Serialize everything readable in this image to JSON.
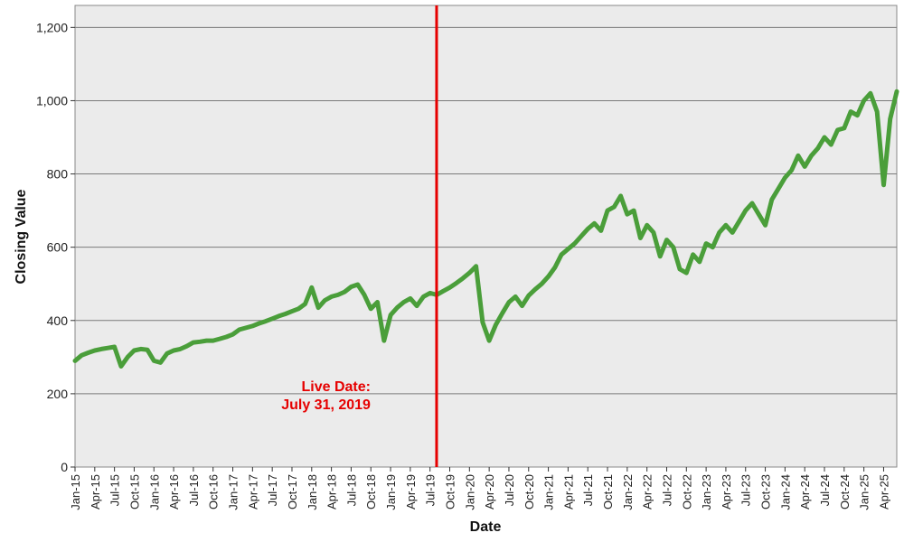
{
  "chart_data": {
    "type": "line",
    "title": "",
    "xlabel": "Date",
    "ylabel": "Closing Value",
    "ylim": [
      0,
      1260
    ],
    "yticks": [
      0,
      200,
      400,
      600,
      800,
      1000,
      1200
    ],
    "ytick_labels": [
      "0",
      "200",
      "400",
      "600",
      "800",
      "1,000",
      "1,200"
    ],
    "xlim": [
      "2015-01",
      "2025-06"
    ],
    "xtick_labels": [
      "Jan-15",
      "Apr-15",
      "Jul-15",
      "Oct-15",
      "Jan-16",
      "Apr-16",
      "Jul-16",
      "Oct-16",
      "Jan-17",
      "Apr-17",
      "Jul-17",
      "Oct-17",
      "Jan-18",
      "Apr-18",
      "Jul-18",
      "Oct-18",
      "Jan-19",
      "Apr-19",
      "Jul-19",
      "Oct-19",
      "Jan-20",
      "Apr-20",
      "Jul-20",
      "Oct-20",
      "Jan-21",
      "Apr-21",
      "Jul-21",
      "Oct-21",
      "Jan-22",
      "Apr-22",
      "Jul-22",
      "Oct-22",
      "Jan-23",
      "Apr-23",
      "Jul-23",
      "Oct-23",
      "Jan-24",
      "Apr-24",
      "Jul-24",
      "Oct-24",
      "Jan-25",
      "Apr-25"
    ],
    "grid": true,
    "legend": "none",
    "series_color": "#4a9e3a",
    "marker_color": "#e60000",
    "annotation": {
      "line1": "Live Date:",
      "line2": "July 31, 2019",
      "x": "2019-07-31"
    },
    "series": [
      {
        "x": [
          "2015-01",
          "2015-02",
          "2015-03",
          "2015-04",
          "2015-05",
          "2015-06",
          "2015-07",
          "2015-08",
          "2015-09",
          "2015-10",
          "2015-11",
          "2015-12",
          "2016-01",
          "2016-02",
          "2016-03",
          "2016-04",
          "2016-05",
          "2016-06",
          "2016-07",
          "2016-08",
          "2016-09",
          "2016-10",
          "2016-11",
          "2016-12",
          "2017-01",
          "2017-02",
          "2017-03",
          "2017-04",
          "2017-05",
          "2017-06",
          "2017-07",
          "2017-08",
          "2017-09",
          "2017-10",
          "2017-11",
          "2017-12",
          "2018-01",
          "2018-02",
          "2018-03",
          "2018-04",
          "2018-05",
          "2018-06",
          "2018-07",
          "2018-08",
          "2018-09",
          "2018-10",
          "2018-11",
          "2018-12",
          "2019-01",
          "2019-02",
          "2019-03",
          "2019-04",
          "2019-05",
          "2019-06",
          "2019-07",
          "2019-08",
          "2019-09",
          "2019-10",
          "2019-11",
          "2019-12",
          "2020-01",
          "2020-02",
          "2020-03",
          "2020-04",
          "2020-05",
          "2020-06",
          "2020-07",
          "2020-08",
          "2020-09",
          "2020-10",
          "2020-11",
          "2020-12",
          "2021-01",
          "2021-02",
          "2021-03",
          "2021-04",
          "2021-05",
          "2021-06",
          "2021-07",
          "2021-08",
          "2021-09",
          "2021-10",
          "2021-11",
          "2021-12",
          "2022-01",
          "2022-02",
          "2022-03",
          "2022-04",
          "2022-05",
          "2022-06",
          "2022-07",
          "2022-08",
          "2022-09",
          "2022-10",
          "2022-11",
          "2022-12",
          "2023-01",
          "2023-02",
          "2023-03",
          "2023-04",
          "2023-05",
          "2023-06",
          "2023-07",
          "2023-08",
          "2023-09",
          "2023-10",
          "2023-11",
          "2023-12",
          "2024-01",
          "2024-02",
          "2024-03",
          "2024-04",
          "2024-05",
          "2024-06",
          "2024-07",
          "2024-08",
          "2024-09",
          "2024-10",
          "2024-11",
          "2024-12",
          "2025-01",
          "2025-02",
          "2025-03",
          "2025-04",
          "2025-05",
          "2025-06"
        ],
        "y": [
          290,
          305,
          312,
          318,
          322,
          325,
          328,
          275,
          300,
          318,
          322,
          320,
          290,
          285,
          310,
          318,
          322,
          330,
          340,
          342,
          345,
          345,
          350,
          355,
          362,
          375,
          380,
          385,
          392,
          398,
          405,
          412,
          418,
          425,
          432,
          445,
          490,
          435,
          455,
          465,
          470,
          478,
          492,
          498,
          470,
          432,
          450,
          345,
          415,
          435,
          450,
          460,
          440,
          465,
          475,
          470,
          480,
          490,
          502,
          515,
          530,
          548,
          395,
          345,
          388,
          420,
          450,
          465,
          440,
          468,
          485,
          500,
          520,
          545,
          580,
          595,
          610,
          630,
          650,
          665,
          645,
          700,
          710,
          740,
          690,
          700,
          625,
          660,
          640,
          575,
          620,
          600,
          540,
          530,
          580,
          560,
          610,
          600,
          640,
          660,
          640,
          670,
          700,
          720,
          690,
          660,
          730,
          760,
          790,
          810,
          850,
          820,
          850,
          870,
          900,
          880,
          920,
          925,
          970,
          960,
          1000,
          1020,
          970,
          770,
          950,
          1025
        ]
      }
    ]
  }
}
